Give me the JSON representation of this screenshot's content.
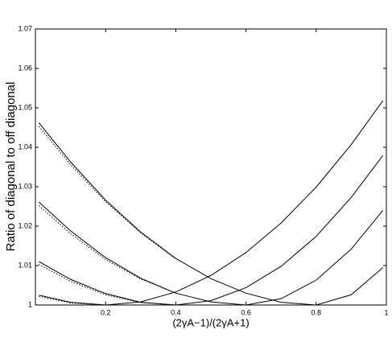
{
  "chart_data": {
    "type": "line",
    "xlabel": "(2γA−1)/(2γA+1)",
    "ylabel": "Ratio of diagonal to off diagonal",
    "x": [
      0.01,
      0.1,
      0.2,
      0.3,
      0.4,
      0.5,
      0.6,
      0.7,
      0.8,
      0.9,
      0.99
    ],
    "series": [
      {
        "color": "#000000",
        "dash": "solid",
        "values": [
          1.0025,
          1.0007,
          1.0,
          1.0008,
          1.0033,
          1.0075,
          1.0133,
          1.0208,
          1.0299,
          1.0407,
          1.0518
        ]
      },
      {
        "color": "#000000",
        "dash": "solid",
        "values": [
          1.011,
          1.0065,
          1.0029,
          1.0007,
          1.0,
          1.0011,
          1.0044,
          1.0098,
          1.0174,
          1.0273,
          1.0379
        ]
      },
      {
        "color": "#000000",
        "dash": "solid",
        "values": [
          1.0261,
          1.0188,
          1.012,
          1.0068,
          1.003,
          1.0008,
          1.0,
          1.0016,
          1.0063,
          1.0142,
          1.024
        ]
      },
      {
        "color": "#000000",
        "dash": "solid",
        "values": [
          1.0462,
          1.0363,
          1.0266,
          1.0185,
          1.0118,
          1.0067,
          1.003,
          1.0007,
          1.0,
          1.0026,
          1.0095
        ]
      },
      {
        "color": "#000000",
        "dash": "dotted",
        "values": [
          1.0022,
          1.0005,
          1.0,
          null,
          null,
          null,
          null,
          null,
          null,
          null,
          null
        ]
      },
      {
        "color": "#000000",
        "dash": "dotted",
        "values": [
          1.0103,
          1.006,
          1.0026,
          1.0006,
          1.0,
          null,
          null,
          null,
          null,
          null,
          null
        ]
      },
      {
        "color": "#000000",
        "dash": "dotted",
        "values": [
          1.0252,
          1.0181,
          1.0115,
          1.0066,
          1.003,
          null,
          null,
          null,
          null,
          null,
          null
        ]
      },
      {
        "color": "#000000",
        "dash": "dotted",
        "values": [
          1.0453,
          1.0356,
          1.0262,
          1.0183,
          1.0117,
          null,
          null,
          null,
          null,
          null,
          null
        ]
      }
    ],
    "xlim": [
      0,
      1
    ],
    "xticks": [
      0.2,
      0.4,
      0.6,
      0.8,
      1
    ],
    "ylim": [
      1,
      1.07
    ],
    "yticks": [
      1,
      1.01,
      1.02,
      1.03,
      1.04,
      1.05,
      1.06,
      1.07
    ]
  }
}
